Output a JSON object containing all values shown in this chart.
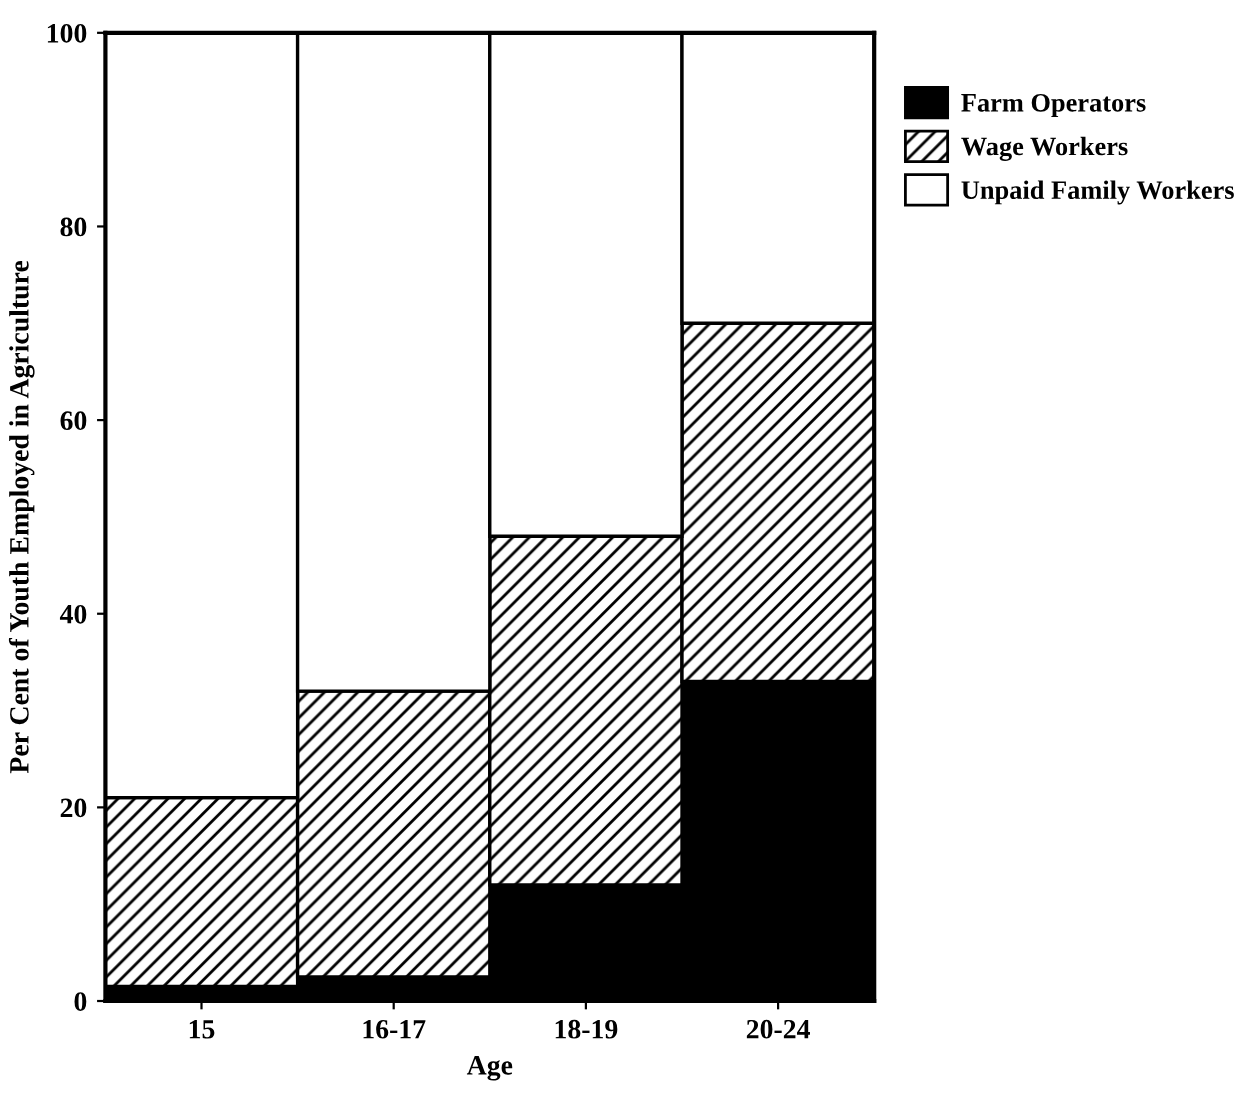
{
  "chart_data": {
    "type": "bar",
    "xlabel": "Age",
    "ylabel": "Per Cent of Youth Employed in Agriculture",
    "categories": [
      "15",
      "16-17",
      "18-19",
      "20-24"
    ],
    "stacked": true,
    "series": [
      {
        "name": "Farm Operators",
        "color": "#000000",
        "values": [
          1.5,
          2.5,
          12,
          33
        ]
      },
      {
        "name": "Wage Workers",
        "color": "#000000",
        "values": [
          19.5,
          29.5,
          36,
          37
        ]
      },
      {
        "name": "Unpaid Family Workers",
        "color": "#ffffff",
        "values": [
          79,
          68,
          52,
          30
        ]
      }
    ],
    "ylim": [
      0,
      100
    ],
    "yticks": [
      0,
      20,
      40,
      60,
      80,
      100
    ],
    "grid": false,
    "legend": "top right"
  }
}
